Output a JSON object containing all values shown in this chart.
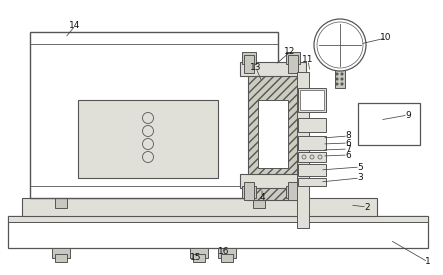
{
  "lc": "#555555",
  "lc2": "#333333",
  "bg": "white",
  "fc_box": "#f0f0ec",
  "fc_mid": "#e0e0d8",
  "fc_hatch": "#ccccbf",
  "fc_dark": "#c8c8c0",
  "fc_base": "#e8e8e0"
}
